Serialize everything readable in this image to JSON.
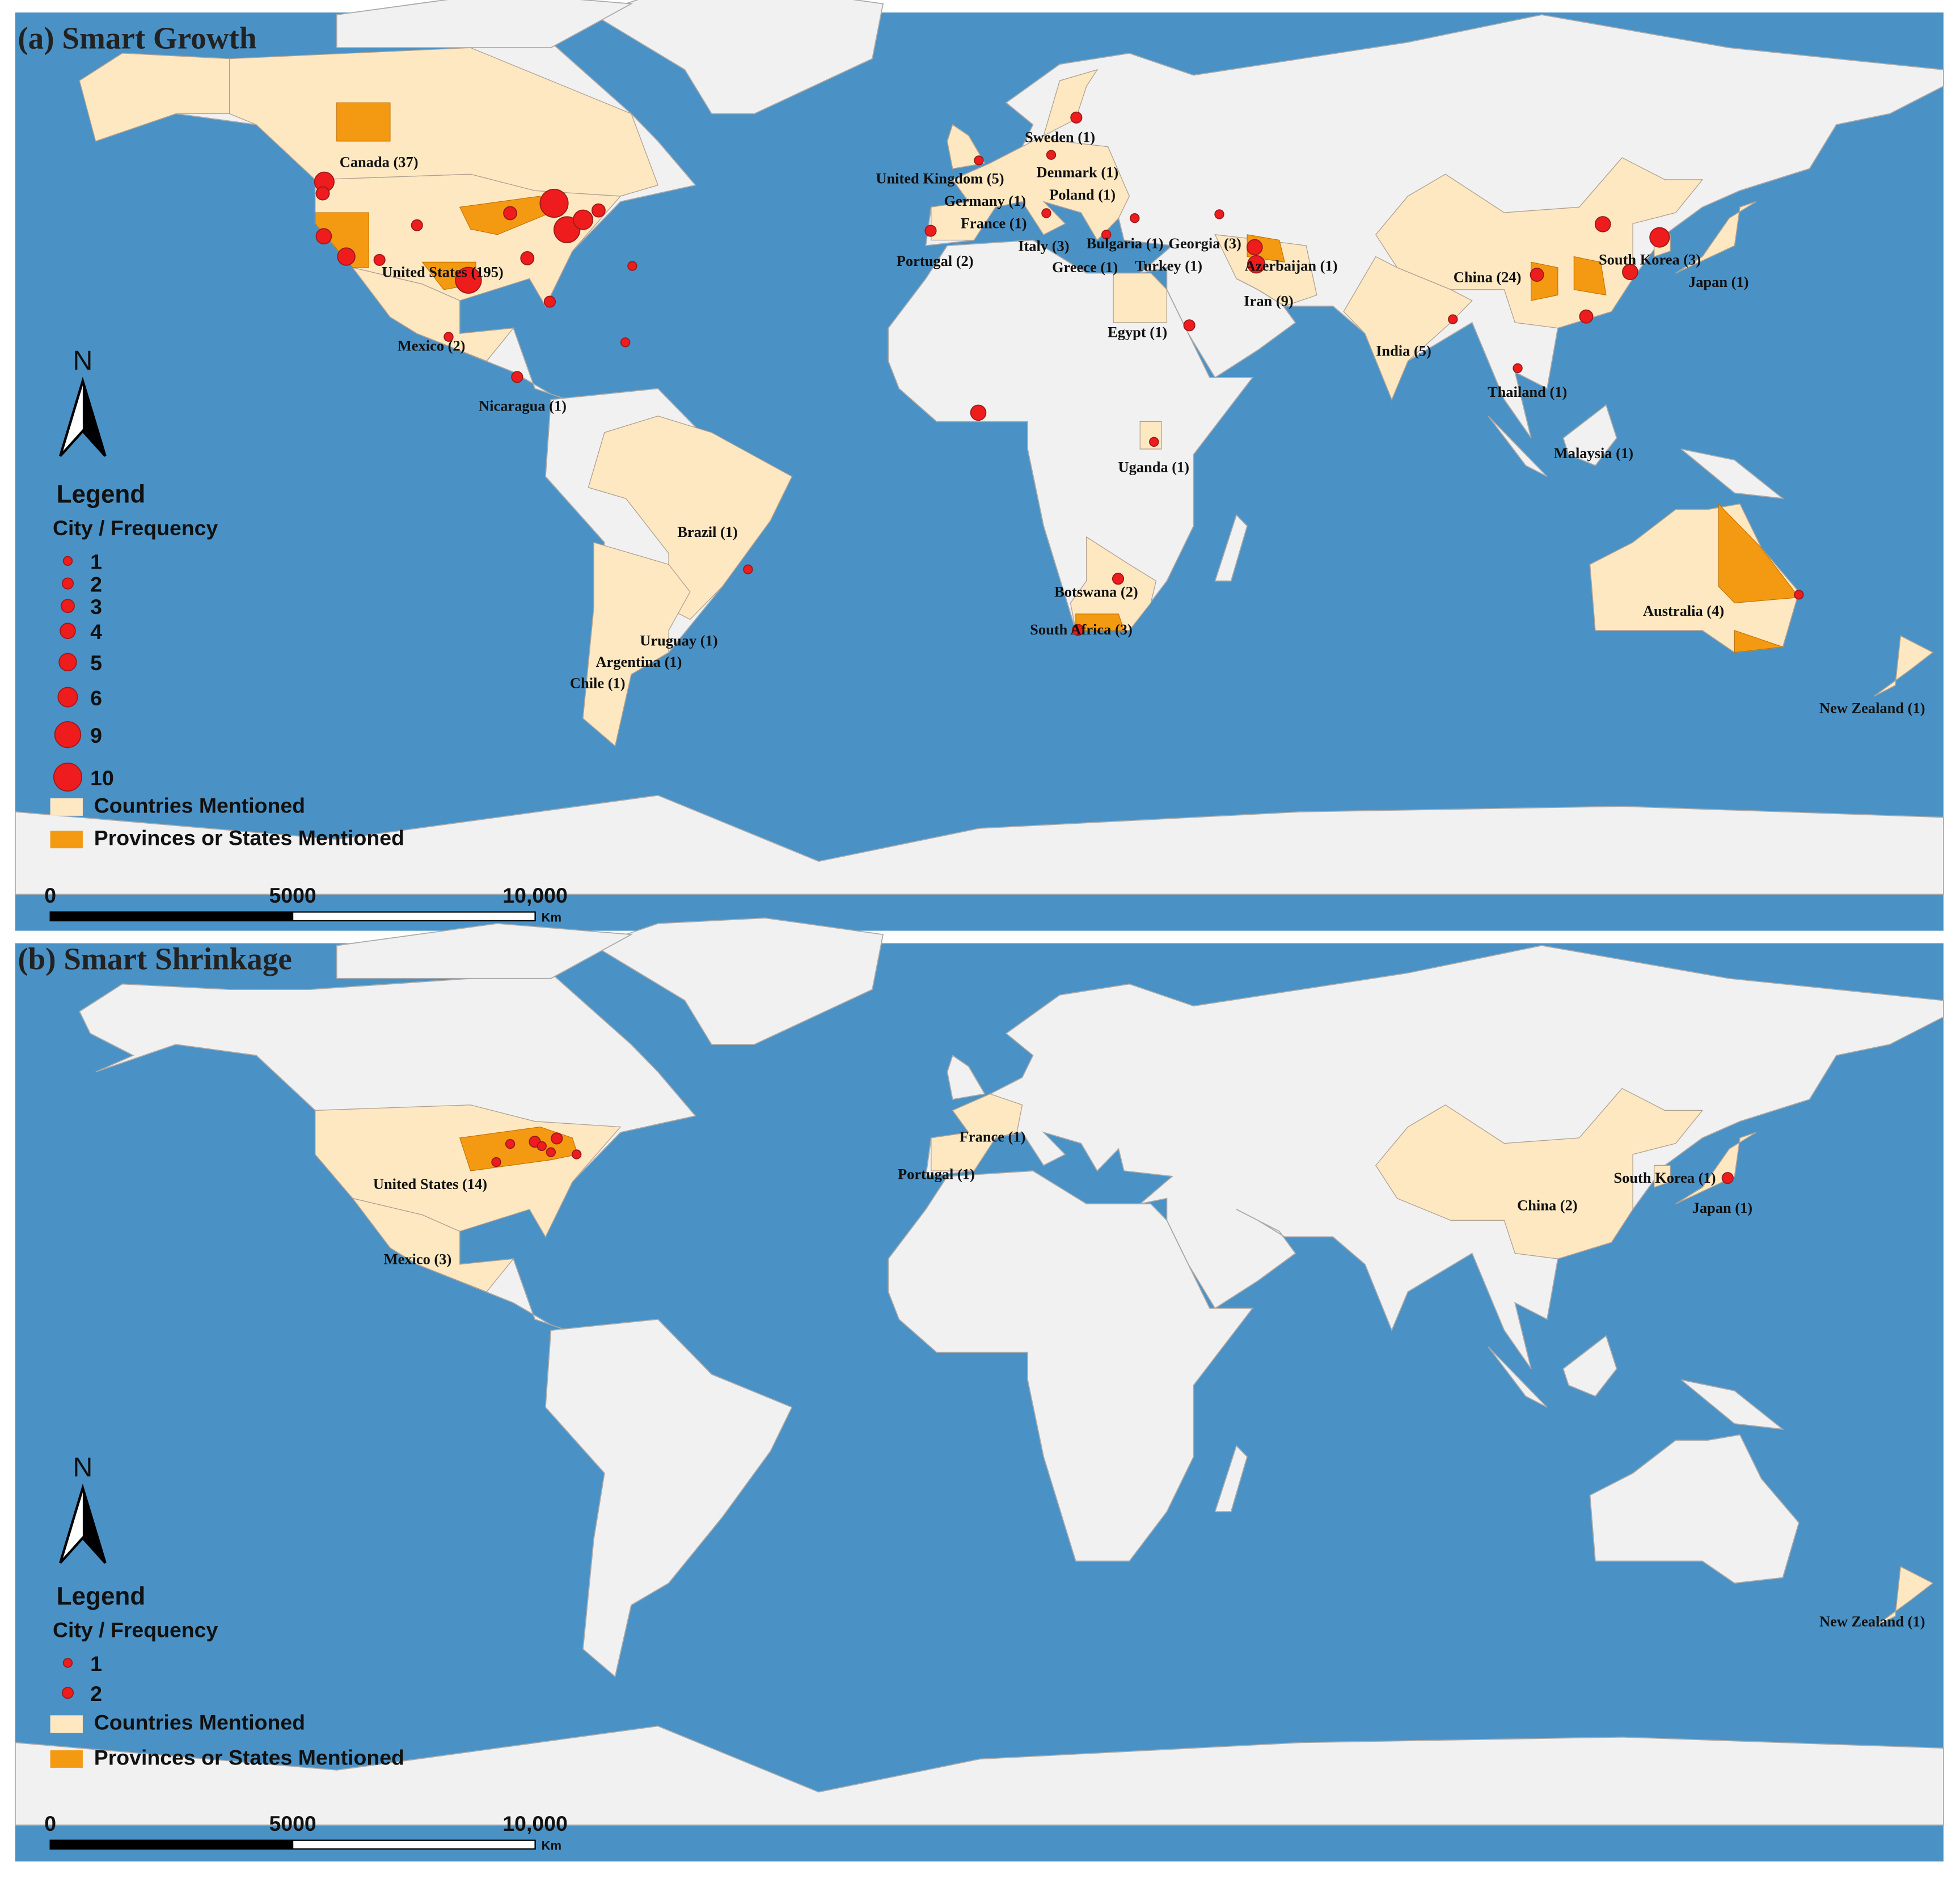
{
  "panels": [
    {
      "title": "(a) Smart Growth",
      "labels": [
        "Canada (37)",
        "United States (195)",
        "Mexico (2)",
        "Nicaragua (1)",
        "Brazil (1)",
        "Uruguay (1)",
        "Argentina (1)",
        "Chile (1)",
        "Sweden (1)",
        "Denmark (1)",
        "United Kingdom (5)",
        "Germany (1)",
        "Poland (1)",
        "France (1)",
        "Italy (3)",
        "Bulgaria (1)",
        "Georgia (3)",
        "Portugal (2)",
        "Greece (1)",
        "Turkey (1)",
        "Azerbaijan (1)",
        "Iran (9)",
        "Egypt (1)",
        "Uganda (1)",
        "Botswana (2)",
        "South Africa (3)",
        "China (24)",
        "South Korea (3)",
        "Japan (1)",
        "India (5)",
        "Thailand (1)",
        "Malaysia (1)",
        "Australia (4)",
        "New Zealand (1)"
      ],
      "cities": [
        {
          "lon": -122.3,
          "lat": 47.6,
          "frequency": 6
        },
        {
          "lon": -122.4,
          "lat": 37.7,
          "frequency": 4
        },
        {
          "lon": -118.2,
          "lat": 34.0,
          "frequency": 5
        },
        {
          "lon": -122.6,
          "lat": 45.5,
          "frequency": 3
        },
        {
          "lon": -112.0,
          "lat": 33.4,
          "frequency": 2
        },
        {
          "lon": -105.0,
          "lat": 39.7,
          "frequency": 2
        },
        {
          "lon": -95.4,
          "lat": 29.7,
          "frequency": 9
        },
        {
          "lon": -87.6,
          "lat": 41.9,
          "frequency": 3
        },
        {
          "lon": -79.4,
          "lat": 43.7,
          "frequency": 10
        },
        {
          "lon": -77.0,
          "lat": 38.9,
          "frequency": 9
        },
        {
          "lon": -74.0,
          "lat": 40.7,
          "frequency": 6
        },
        {
          "lon": -71.1,
          "lat": 42.4,
          "frequency": 3
        },
        {
          "lon": -84.4,
          "lat": 33.7,
          "frequency": 3
        },
        {
          "lon": -80.2,
          "lat": 25.8,
          "frequency": 2
        },
        {
          "lon": -64.8,
          "lat": 32.3,
          "frequency": 1
        },
        {
          "lon": -66.1,
          "lat": 18.4,
          "frequency": 1
        },
        {
          "lon": -99.1,
          "lat": 19.4,
          "frequency": 1
        },
        {
          "lon": -86.3,
          "lat": 12.1,
          "frequency": 2
        },
        {
          "lon": -43.2,
          "lat": -22.9,
          "frequency": 1
        },
        {
          "lon": -0.2,
          "lat": 5.6,
          "frequency": 4
        },
        {
          "lon": 18.4,
          "lat": -33.9,
          "frequency": 2
        },
        {
          "lon": 25.9,
          "lat": -24.6,
          "frequency": 2
        },
        {
          "lon": 32.6,
          "lat": 0.3,
          "frequency": 1
        },
        {
          "lon": 39.2,
          "lat": 21.5,
          "frequency": 2
        },
        {
          "lon": -0.1,
          "lat": 51.5,
          "frequency": 1
        },
        {
          "lon": 13.4,
          "lat": 52.5,
          "frequency": 1
        },
        {
          "lon": 18.1,
          "lat": 59.3,
          "frequency": 2
        },
        {
          "lon": -9.1,
          "lat": 38.7,
          "frequency": 2
        },
        {
          "lon": 12.5,
          "lat": 41.9,
          "frequency": 1
        },
        {
          "lon": 23.7,
          "lat": 38.0,
          "frequency": 1
        },
        {
          "lon": 29.0,
          "lat": 41.0,
          "frequency": 1
        },
        {
          "lon": 44.8,
          "lat": 41.7,
          "frequency": 1
        },
        {
          "lon": 51.4,
          "lat": 35.7,
          "frequency": 4
        },
        {
          "lon": 51.7,
          "lat": 32.6,
          "frequency": 5
        },
        {
          "lon": 116.4,
          "lat": 39.9,
          "frequency": 4
        },
        {
          "lon": 121.5,
          "lat": 31.2,
          "frequency": 4
        },
        {
          "lon": 113.3,
          "lat": 23.1,
          "frequency": 3
        },
        {
          "lon": 127.0,
          "lat": 37.5,
          "frequency": 6
        },
        {
          "lon": 104.1,
          "lat": 30.7,
          "frequency": 3
        },
        {
          "lon": 88.4,
          "lat": 22.6,
          "frequency": 1
        },
        {
          "lon": 100.5,
          "lat": 13.7,
          "frequency": 1
        },
        {
          "lon": 153.0,
          "lat": -27.5,
          "frequency": 1
        }
      ],
      "north": "N",
      "legend": {
        "title": "Legend",
        "subtitle": "City /  Frequency",
        "sizes": [
          1,
          2,
          3,
          4,
          5,
          6,
          9,
          10
        ],
        "countries": "Countries Mentioned",
        "provinces": "Provinces or States Mentioned"
      },
      "scale": {
        "ticks": [
          0,
          5000,
          {
            "value": 10000,
            "label": "10,000"
          }
        ],
        "unit": "Km"
      }
    },
    {
      "title": "(b) Smart Shrinkage",
      "labels": [
        "United States (14)",
        "Mexico (3)",
        "France (1)",
        "Portugal (1)",
        "China (2)",
        "South Korea (1)",
        "Japan (1)",
        "New Zealand (1)"
      ],
      "cities": [
        {
          "lon": -87.6,
          "lat": 41.9,
          "frequency": 1
        },
        {
          "lon": -83.0,
          "lat": 42.3,
          "frequency": 2
        },
        {
          "lon": -81.7,
          "lat": 41.5,
          "frequency": 1
        },
        {
          "lon": -80.0,
          "lat": 40.4,
          "frequency": 1
        },
        {
          "lon": -75.2,
          "lat": 40.0,
          "frequency": 1
        },
        {
          "lon": -78.9,
          "lat": 42.9,
          "frequency": 2
        },
        {
          "lon": -90.2,
          "lat": 38.6,
          "frequency": 1
        },
        {
          "lon": 139.7,
          "lat": 35.7,
          "frequency": 2
        }
      ],
      "north": "N",
      "legend": {
        "title": "Legend",
        "subtitle": "City /  Frequency",
        "sizes": [
          1,
          2
        ],
        "countries": "Countries Mentioned",
        "provinces": "Provinces or States Mentioned"
      },
      "scale": {
        "ticks": [
          0,
          5000,
          {
            "value": 10000,
            "label": "10,000"
          }
        ],
        "unit": "Km"
      }
    }
  ]
}
